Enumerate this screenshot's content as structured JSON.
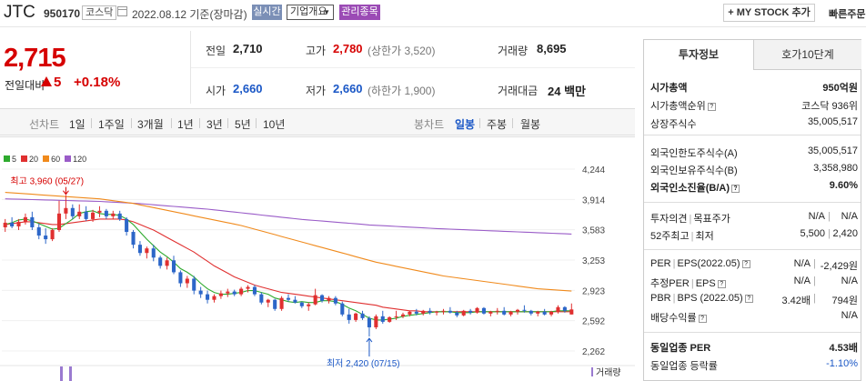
{
  "header": {
    "name": "JTC",
    "code": "950170",
    "market": "코스닥",
    "date": "2022.08.12 기준(장마감)",
    "realtime": "실시간",
    "company_info": "기업개요",
    "managed": "관리종목",
    "my_stock": "+ MY STOCK 추가",
    "quick_order": "빠른주문"
  },
  "quote": {
    "price": "2,715",
    "change_label": "전일대비",
    "change": "5",
    "change_pct": "+0.18%",
    "prev_label": "전일",
    "prev": "2,710",
    "high_label": "고가",
    "high": "2,780",
    "upper_limit": "(상한가 3,520)",
    "volume_label": "거래량",
    "volume": "8,695",
    "open_label": "시가",
    "open": "2,660",
    "low_label": "저가",
    "low": "2,660",
    "lower_limit": "(하한가 1,900)",
    "amount_label": "거래대금",
    "amount": "24 백만"
  },
  "tabs": {
    "line_chart": "선차트",
    "periods": [
      "1일",
      "1주일",
      "3개월",
      "1년",
      "3년",
      "5년",
      "10년"
    ],
    "candle_chart": "봉차트",
    "candles": [
      "일봉",
      "주봉",
      "월봉"
    ],
    "active_candle": "일봉"
  },
  "chart_data": {
    "type": "candlestick",
    "legend": [
      {
        "name": "5",
        "color": "#2eaa2e"
      },
      {
        "name": "20",
        "color": "#e03030"
      },
      {
        "name": "60",
        "color": "#f08a1c"
      },
      {
        "name": "120",
        "color": "#9a5cc8"
      }
    ],
    "y_ticks": [
      "4,244",
      "3,914",
      "3,583",
      "3,253",
      "2,923",
      "2,592",
      "2,262"
    ],
    "ylim": [
      2262,
      4244
    ],
    "high_note": "최고 3,960 (05/27)",
    "low_note": "최저 2,420 (07/15)",
    "volume_label": "거래량",
    "up_color": "#e03030",
    "down_color": "#2c66c8",
    "candles": [
      [
        3610,
        3700,
        3560,
        3660
      ],
      [
        3660,
        3720,
        3600,
        3620
      ],
      [
        3620,
        3700,
        3580,
        3670
      ],
      [
        3670,
        3760,
        3640,
        3720
      ],
      [
        3720,
        3780,
        3580,
        3610
      ],
      [
        3610,
        3650,
        3480,
        3520
      ],
      [
        3520,
        3600,
        3430,
        3480
      ],
      [
        3480,
        3600,
        3460,
        3580
      ],
      [
        3580,
        3900,
        3560,
        3760
      ],
      [
        3760,
        3960,
        3700,
        3820
      ],
      [
        3820,
        3860,
        3700,
        3730
      ],
      [
        3730,
        3860,
        3700,
        3780
      ],
      [
        3780,
        3840,
        3680,
        3700
      ],
      [
        3700,
        3800,
        3670,
        3770
      ],
      [
        3770,
        3840,
        3720,
        3790
      ],
      [
        3790,
        3810,
        3700,
        3730
      ],
      [
        3730,
        3790,
        3700,
        3760
      ],
      [
        3760,
        3790,
        3680,
        3700
      ],
      [
        3700,
        3720,
        3520,
        3560
      ],
      [
        3560,
        3580,
        3380,
        3420
      ],
      [
        3420,
        3460,
        3300,
        3330
      ],
      [
        3330,
        3400,
        3270,
        3380
      ],
      [
        3380,
        3420,
        3240,
        3280
      ],
      [
        3280,
        3300,
        3160,
        3190
      ],
      [
        3190,
        3280,
        3150,
        3250
      ],
      [
        3250,
        3300,
        3100,
        3120
      ],
      [
        3120,
        3140,
        2960,
        3000
      ],
      [
        3000,
        3080,
        2950,
        3050
      ],
      [
        3050,
        3080,
        2880,
        2920
      ],
      [
        2920,
        2960,
        2840,
        2880
      ],
      [
        2880,
        2920,
        2780,
        2820
      ],
      [
        2820,
        2880,
        2790,
        2860
      ],
      [
        2860,
        2920,
        2830,
        2890
      ],
      [
        2890,
        2940,
        2850,
        2910
      ],
      [
        2910,
        2930,
        2860,
        2880
      ],
      [
        2880,
        2960,
        2860,
        2940
      ],
      [
        2940,
        2980,
        2900,
        2960
      ],
      [
        2960,
        2980,
        2860,
        2880
      ],
      [
        2880,
        2900,
        2770,
        2790
      ],
      [
        2790,
        2830,
        2740,
        2820
      ],
      [
        2820,
        2830,
        2700,
        2720
      ],
      [
        2720,
        2860,
        2700,
        2840
      ],
      [
        2840,
        2880,
        2800,
        2820
      ],
      [
        2820,
        2860,
        2780,
        2790
      ],
      [
        2790,
        2800,
        2730,
        2750
      ],
      [
        2750,
        2790,
        2700,
        2770
      ],
      [
        2770,
        2940,
        2760,
        2870
      ],
      [
        2870,
        2880,
        2790,
        2810
      ],
      [
        2810,
        2860,
        2780,
        2840
      ],
      [
        2840,
        2860,
        2760,
        2780
      ],
      [
        2780,
        2800,
        2640,
        2660
      ],
      [
        2660,
        2720,
        2560,
        2600
      ],
      [
        2600,
        2680,
        2580,
        2670
      ],
      [
        2670,
        2700,
        2600,
        2620
      ],
      [
        2620,
        2640,
        2420,
        2520
      ],
      [
        2520,
        2660,
        2500,
        2640
      ],
      [
        2640,
        2700,
        2560,
        2580
      ],
      [
        2580,
        2640,
        2570,
        2630
      ],
      [
        2630,
        2700,
        2600,
        2640
      ],
      [
        2640,
        2680,
        2620,
        2660
      ],
      [
        2660,
        2700,
        2640,
        2690
      ],
      [
        2690,
        2720,
        2650,
        2670
      ],
      [
        2670,
        2710,
        2650,
        2700
      ],
      [
        2700,
        2730,
        2660,
        2680
      ],
      [
        2680,
        2700,
        2650,
        2690
      ],
      [
        2690,
        2720,
        2660,
        2700
      ],
      [
        2700,
        2740,
        2670,
        2680
      ],
      [
        2680,
        2700,
        2630,
        2650
      ],
      [
        2650,
        2710,
        2640,
        2700
      ],
      [
        2700,
        2720,
        2660,
        2680
      ],
      [
        2680,
        2740,
        2670,
        2730
      ],
      [
        2730,
        2740,
        2660,
        2670
      ],
      [
        2670,
        2700,
        2640,
        2690
      ],
      [
        2690,
        2730,
        2660,
        2700
      ],
      [
        2700,
        2740,
        2650,
        2660
      ],
      [
        2660,
        2700,
        2640,
        2690
      ],
      [
        2690,
        2720,
        2660,
        2710
      ],
      [
        2710,
        2760,
        2680,
        2700
      ],
      [
        2700,
        2710,
        2650,
        2670
      ],
      [
        2670,
        2700,
        2640,
        2690
      ],
      [
        2690,
        2720,
        2650,
        2660
      ],
      [
        2660,
        2700,
        2640,
        2690
      ],
      [
        2690,
        2760,
        2670,
        2740
      ],
      [
        2740,
        2750,
        2680,
        2700
      ],
      [
        2660,
        2780,
        2660,
        2715
      ]
    ],
    "ma5": [
      3640,
      3660,
      3690,
      3700,
      3680,
      3650,
      3620,
      3590,
      3600,
      3650,
      3700,
      3760,
      3780,
      3790,
      3760,
      3750,
      3750,
      3740,
      3700,
      3640,
      3560,
      3480,
      3410,
      3340,
      3290,
      3230,
      3160,
      3120,
      3070,
      3000,
      2940,
      2900,
      2880,
      2880,
      2890,
      2900,
      2920,
      2920,
      2900,
      2880,
      2840,
      2820,
      2800,
      2790,
      2800,
      2790,
      2790,
      2810,
      2810,
      2800,
      2770,
      2730,
      2700,
      2660,
      2620,
      2600,
      2600,
      2610,
      2620,
      2640,
      2650,
      2660,
      2670,
      2680,
      2690,
      2690,
      2690,
      2680,
      2680,
      2680,
      2690,
      2690,
      2690,
      2690,
      2690,
      2690,
      2690,
      2690,
      2690,
      2690,
      2690,
      2690,
      2700,
      2700,
      2700
    ],
    "ma20": [
      3640,
      3650,
      3660,
      3670,
      3670,
      3660,
      3650,
      3640,
      3640,
      3650,
      3660,
      3670,
      3680,
      3690,
      3700,
      3700,
      3700,
      3700,
      3690,
      3670,
      3640,
      3610,
      3580,
      3540,
      3500,
      3460,
      3420,
      3380,
      3340,
      3290,
      3240,
      3190,
      3150,
      3110,
      3070,
      3040,
      3010,
      2980,
      2960,
      2940,
      2920,
      2900,
      2890,
      2880,
      2870,
      2860,
      2850,
      2840,
      2830,
      2820,
      2810,
      2800,
      2790,
      2780,
      2770,
      2760,
      2740,
      2730,
      2720,
      2710,
      2700,
      2700,
      2690,
      2690,
      2690,
      2690,
      2690,
      2690,
      2690,
      2690,
      2690,
      2690,
      2690,
      2690,
      2690,
      2690,
      2690,
      2690,
      2690,
      2690,
      2690,
      2690,
      2690,
      2690,
      2690
    ],
    "ma60": [
      3990,
      3985,
      3980,
      3975,
      3970,
      3965,
      3960,
      3955,
      3950,
      3945,
      3940,
      3935,
      3930,
      3925,
      3920,
      3910,
      3900,
      3890,
      3880,
      3870,
      3855,
      3840,
      3825,
      3810,
      3795,
      3780,
      3765,
      3750,
      3735,
      3720,
      3705,
      3690,
      3675,
      3660,
      3645,
      3630,
      3610,
      3590,
      3570,
      3550,
      3530,
      3510,
      3490,
      3470,
      3450,
      3430,
      3410,
      3390,
      3370,
      3350,
      3330,
      3310,
      3290,
      3270,
      3250,
      3230,
      3215,
      3200,
      3185,
      3170,
      3155,
      3140,
      3125,
      3110,
      3095,
      3080,
      3070,
      3060,
      3050,
      3040,
      3030,
      3020,
      3010,
      3000,
      2990,
      2980,
      2970,
      2960,
      2950,
      2940,
      2935,
      2930,
      2925,
      2920,
      2915
    ],
    "ma120": [
      3920,
      3918,
      3916,
      3914,
      3912,
      3910,
      3908,
      3906,
      3904,
      3902,
      3900,
      3898,
      3896,
      3894,
      3892,
      3888,
      3884,
      3880,
      3876,
      3872,
      3868,
      3862,
      3856,
      3850,
      3844,
      3838,
      3832,
      3826,
      3820,
      3814,
      3808,
      3800,
      3792,
      3784,
      3776,
      3768,
      3760,
      3752,
      3744,
      3736,
      3728,
      3720,
      3712,
      3704,
      3696,
      3690,
      3684,
      3678,
      3672,
      3666,
      3660,
      3654,
      3648,
      3642,
      3636,
      3632,
      3628,
      3624,
      3620,
      3616,
      3612,
      3608,
      3604,
      3600,
      3596,
      3593,
      3590,
      3587,
      3584,
      3581,
      3578,
      3575,
      3572,
      3569,
      3566,
      3563,
      3560,
      3557,
      3554,
      3551,
      3548,
      3545,
      3542,
      3539,
      3536
    ]
  },
  "panel": {
    "tab_active": "투자정보",
    "tab_other": "호가10단계",
    "rows1": [
      {
        "k": "시가총액",
        "v": "950억원",
        "bold": true
      },
      {
        "k": "시가총액순위",
        "v": "코스닥 936위"
      },
      {
        "k": "상장주식수",
        "v": "35,005,517"
      }
    ],
    "rows2": [
      {
        "k": "외국인한도주식수(A)",
        "v": "35,005,517"
      },
      {
        "k": "외국인보유주식수(B)",
        "v": "3,358,980"
      },
      {
        "k": "외국인소진율(B/A)",
        "v": "9.60%",
        "bold": true
      }
    ],
    "rows3": [
      {
        "k1": "투자의견",
        "k2": "목표주가",
        "v1": "N/A",
        "v2": "N/A"
      },
      {
        "k1": "52주최고",
        "k2": "최저",
        "v1": "5,500",
        "v2": "2,420"
      }
    ],
    "rows4": [
      {
        "k1": "PER",
        "k2": "EPS(2022.05)",
        "v1": "N/A",
        "v2": "-2,429원"
      },
      {
        "k1": "추정PER",
        "k2": "EPS",
        "v1": "N/A",
        "v2": "N/A"
      },
      {
        "k1": "PBR",
        "k2": "BPS (2022.05)",
        "v1": "3.42배",
        "v2": "794원"
      },
      {
        "k1": "배당수익률",
        "k2": "",
        "v1": "",
        "v2": "N/A"
      }
    ],
    "rows5": [
      {
        "k": "동일업종 PER",
        "v": "4.53배",
        "bold": true
      },
      {
        "k": "동일업종 등락률",
        "v": "-1.10%",
        "blue": true
      }
    ]
  }
}
